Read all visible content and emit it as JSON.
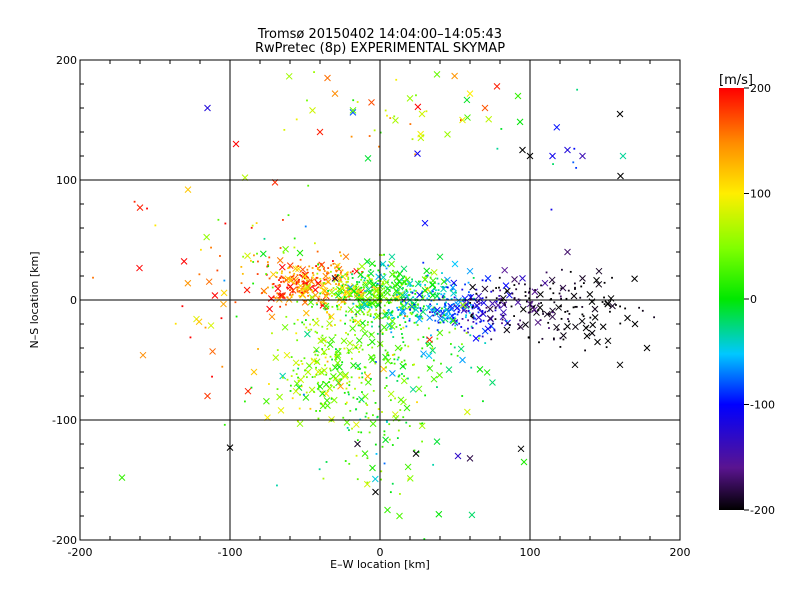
{
  "chart_data": {
    "type": "scatter",
    "title": "Tromsø 20150402 14:04:00–14:05:43",
    "subtitle": "RwPretec (8p) EXPERIMENTAL SKYMAP",
    "xlabel": "E–W location [km]",
    "ylabel": "N–S location [km]",
    "xlim": [
      -200,
      200
    ],
    "ylim": [
      -200,
      200
    ],
    "xticks": [
      -200,
      -100,
      0,
      100,
      200
    ],
    "yticks": [
      -200,
      -100,
      0,
      100,
      200
    ],
    "grid": true,
    "colorbar": {
      "label": "[m/s]",
      "range": [
        -200,
        200
      ],
      "ticks": [
        200,
        100,
        0,
        -100,
        -200
      ],
      "colormap": "black-purple-blue-cyan-green-yellow-red"
    },
    "markers": [
      "x",
      "dot"
    ],
    "points": [
      [
        -160,
        77,
        190,
        "x"
      ],
      [
        -158,
        -46,
        150,
        "x"
      ],
      [
        -128,
        92,
        120,
        "x"
      ],
      [
        -115,
        160,
        -120,
        "x"
      ],
      [
        -96,
        130,
        200,
        "x"
      ],
      [
        -90,
        102,
        70,
        "x"
      ],
      [
        -70,
        98,
        185,
        "x"
      ],
      [
        -115,
        -80,
        180,
        "x"
      ],
      [
        -172,
        -148,
        20,
        "x"
      ],
      [
        -100,
        -123,
        -200,
        "x"
      ],
      [
        -88,
        -76,
        190,
        "x"
      ],
      [
        -84,
        -60,
        120,
        "x"
      ],
      [
        -62,
        -46,
        90,
        "x"
      ],
      [
        -72,
        -14,
        150,
        "x"
      ],
      [
        -65,
        4,
        180,
        "x"
      ],
      [
        -58,
        8,
        175,
        "x"
      ],
      [
        -50,
        -2,
        160,
        "x"
      ],
      [
        -43,
        4,
        140,
        "x"
      ],
      [
        -38,
        12,
        120,
        "x"
      ],
      [
        -30,
        18,
        -190,
        "x"
      ],
      [
        -25,
        10,
        100,
        "x"
      ],
      [
        -20,
        5,
        60,
        "x"
      ],
      [
        -15,
        -10,
        40,
        "x"
      ],
      [
        -10,
        -28,
        30,
        "x"
      ],
      [
        -5,
        -50,
        20,
        "x"
      ],
      [
        -40,
        -72,
        10,
        "x"
      ],
      [
        -35,
        -88,
        30,
        "x"
      ],
      [
        -22,
        -102,
        40,
        "x"
      ],
      [
        -15,
        -120,
        -190,
        "x"
      ],
      [
        -10,
        -128,
        20,
        "x"
      ],
      [
        -5,
        -140,
        10,
        "x"
      ],
      [
        -3,
        -160,
        -200,
        "x"
      ],
      [
        5,
        -175,
        20,
        "x"
      ],
      [
        13,
        -180,
        30,
        "x"
      ],
      [
        -8,
        118,
        -10,
        "x"
      ],
      [
        -18,
        158,
        40,
        "x"
      ],
      [
        -30,
        172,
        150,
        "x"
      ],
      [
        -35,
        185,
        160,
        "x"
      ],
      [
        -40,
        140,
        190,
        "x"
      ],
      [
        -45,
        158,
        80,
        "x"
      ],
      [
        20,
        168,
        60,
        "x"
      ],
      [
        25,
        122,
        -110,
        "x"
      ],
      [
        28,
        155,
        80,
        "x"
      ],
      [
        38,
        188,
        40,
        "x"
      ],
      [
        45,
        138,
        60,
        "x"
      ],
      [
        55,
        150,
        90,
        "x"
      ],
      [
        60,
        172,
        100,
        "x"
      ],
      [
        70,
        160,
        170,
        "x"
      ],
      [
        78,
        178,
        190,
        "x"
      ],
      [
        92,
        170,
        20,
        "x"
      ],
      [
        95,
        125,
        -200,
        "x"
      ],
      [
        100,
        120,
        -200,
        "x"
      ],
      [
        115,
        120,
        -110,
        "x"
      ],
      [
        125,
        125,
        -120,
        "x"
      ],
      [
        135,
        120,
        -140,
        "x"
      ],
      [
        160,
        155,
        -200,
        "x"
      ],
      [
        162,
        120,
        -30,
        "x"
      ],
      [
        30,
        64,
        -100,
        "x"
      ],
      [
        40,
        36,
        -10,
        "x"
      ],
      [
        50,
        30,
        -50,
        "x"
      ],
      [
        60,
        24,
        -60,
        "x"
      ],
      [
        72,
        18,
        -90,
        "x"
      ],
      [
        84,
        12,
        -100,
        "x"
      ],
      [
        95,
        18,
        -130,
        "x"
      ],
      [
        110,
        14,
        -150,
        "x"
      ],
      [
        122,
        10,
        -180,
        "x"
      ],
      [
        135,
        18,
        -190,
        "x"
      ],
      [
        146,
        24,
        -190,
        "x"
      ],
      [
        155,
        -5,
        -190,
        "x"
      ],
      [
        165,
        -15,
        -200,
        "x"
      ],
      [
        170,
        -20,
        -200,
        "x"
      ],
      [
        178,
        -40,
        -200,
        "x"
      ],
      [
        152,
        -34,
        -200,
        "x"
      ],
      [
        138,
        -30,
        -200,
        "x"
      ],
      [
        125,
        -22,
        -200,
        "x"
      ],
      [
        115,
        -14,
        -180,
        "x"
      ],
      [
        103,
        -8,
        -160,
        "x"
      ],
      [
        92,
        -2,
        -150,
        "x"
      ],
      [
        82,
        -14,
        -140,
        "x"
      ],
      [
        72,
        -24,
        -110,
        "x"
      ],
      [
        64,
        -32,
        -100,
        "x"
      ],
      [
        55,
        -50,
        -60,
        "x"
      ],
      [
        46,
        -58,
        -20,
        "x"
      ],
      [
        36,
        -66,
        30,
        "x"
      ],
      [
        26,
        -74,
        40,
        "x"
      ],
      [
        18,
        -90,
        20,
        "x"
      ],
      [
        24,
        -128,
        -200,
        "x"
      ],
      [
        38,
        -118,
        -10,
        "x"
      ],
      [
        52,
        -130,
        -130,
        "x"
      ],
      [
        60,
        -132,
        -180,
        "x"
      ],
      [
        94,
        -124,
        -200,
        "x"
      ],
      [
        96,
        -135,
        10,
        "x"
      ],
      [
        0,
        2,
        10,
        "x"
      ],
      [
        5,
        6,
        20,
        "x"
      ],
      [
        10,
        12,
        30,
        "x"
      ],
      [
        15,
        4,
        -20,
        "x"
      ],
      [
        20,
        0,
        -30,
        "x"
      ],
      [
        24,
        -8,
        -40,
        "x"
      ],
      [
        30,
        8,
        0,
        "x"
      ],
      [
        -6,
        22,
        -10,
        "x"
      ],
      [
        -12,
        28,
        60,
        "x"
      ],
      [
        2,
        30,
        -40,
        "x"
      ],
      [
        8,
        36,
        -30,
        "x"
      ],
      [
        16,
        26,
        -20,
        "x"
      ],
      [
        -2,
        -14,
        50,
        "x"
      ],
      [
        8,
        -22,
        40,
        "x"
      ],
      [
        12,
        -40,
        30,
        "x"
      ],
      [
        -20,
        -36,
        60,
        "x"
      ],
      [
        -28,
        -46,
        50,
        "x"
      ],
      [
        -48,
        -60,
        70,
        "x"
      ],
      [
        -56,
        -76,
        80,
        "x"
      ],
      [
        -66,
        -92,
        90,
        "x"
      ],
      [
        -75,
        -98,
        100,
        "x"
      ],
      [
        130,
        -54,
        -200,
        "x"
      ],
      [
        160,
        -54,
        -200,
        "x"
      ],
      [
        125,
        40,
        -170,
        "x"
      ],
      [
        145,
        -35,
        -200,
        "x"
      ],
      [
        33,
        -33,
        190,
        "x"
      ]
    ],
    "clusters": [
      {
        "cx": -55,
        "cy": 15,
        "sx": 14,
        "sy": 10,
        "n": 160,
        "v": 170,
        "vs": 30
      },
      {
        "cx": -30,
        "cy": 10,
        "sx": 12,
        "sy": 12,
        "n": 150,
        "v": 110,
        "vs": 40
      },
      {
        "cx": -5,
        "cy": 5,
        "sx": 12,
        "sy": 12,
        "n": 230,
        "v": 30,
        "vs": 40
      },
      {
        "cx": 20,
        "cy": 2,
        "sx": 14,
        "sy": 12,
        "n": 200,
        "v": -10,
        "vs": 35
      },
      {
        "cx": 45,
        "cy": -5,
        "sx": 12,
        "sy": 10,
        "n": 120,
        "v": -70,
        "vs": 30
      },
      {
        "cx": 65,
        "cy": -8,
        "sx": 10,
        "sy": 10,
        "n": 90,
        "v": -120,
        "vs": 25
      },
      {
        "cx": 95,
        "cy": -5,
        "sx": 20,
        "sy": 14,
        "n": 110,
        "v": -190,
        "vs": 15
      },
      {
        "cx": 135,
        "cy": -8,
        "sx": 18,
        "sy": 15,
        "n": 70,
        "v": -200,
        "vs": 5
      },
      {
        "cx": -30,
        "cy": -45,
        "sx": 20,
        "sy": 22,
        "n": 180,
        "v": 45,
        "vs": 35
      },
      {
        "cx": -5,
        "cy": -80,
        "sx": 18,
        "sy": 35,
        "n": 90,
        "v": 30,
        "vs": 35
      },
      {
        "cx": -50,
        "cy": -70,
        "sx": 18,
        "sy": 18,
        "n": 60,
        "v": 60,
        "vs": 45
      },
      {
        "cx": 30,
        "cy": -40,
        "sx": 22,
        "sy": 25,
        "n": 80,
        "v": 10,
        "vs": 35
      },
      {
        "cx": -70,
        "cy": 40,
        "sx": 20,
        "sy": 15,
        "n": 30,
        "v": 80,
        "vs": 60
      },
      {
        "cx": 0,
        "cy": 160,
        "sx": 30,
        "sy": 25,
        "n": 40,
        "v": 70,
        "vs": 70
      },
      {
        "cx": -120,
        "cy": 10,
        "sx": 25,
        "sy": 30,
        "n": 30,
        "v": 160,
        "vs": 40
      },
      {
        "cx": 10,
        "cy": -140,
        "sx": 25,
        "sy": 30,
        "n": 30,
        "v": 20,
        "vs": 40
      },
      {
        "cx": 110,
        "cy": 130,
        "sx": 30,
        "sy": 25,
        "n": 12,
        "v": -90,
        "vs": 50
      }
    ]
  }
}
